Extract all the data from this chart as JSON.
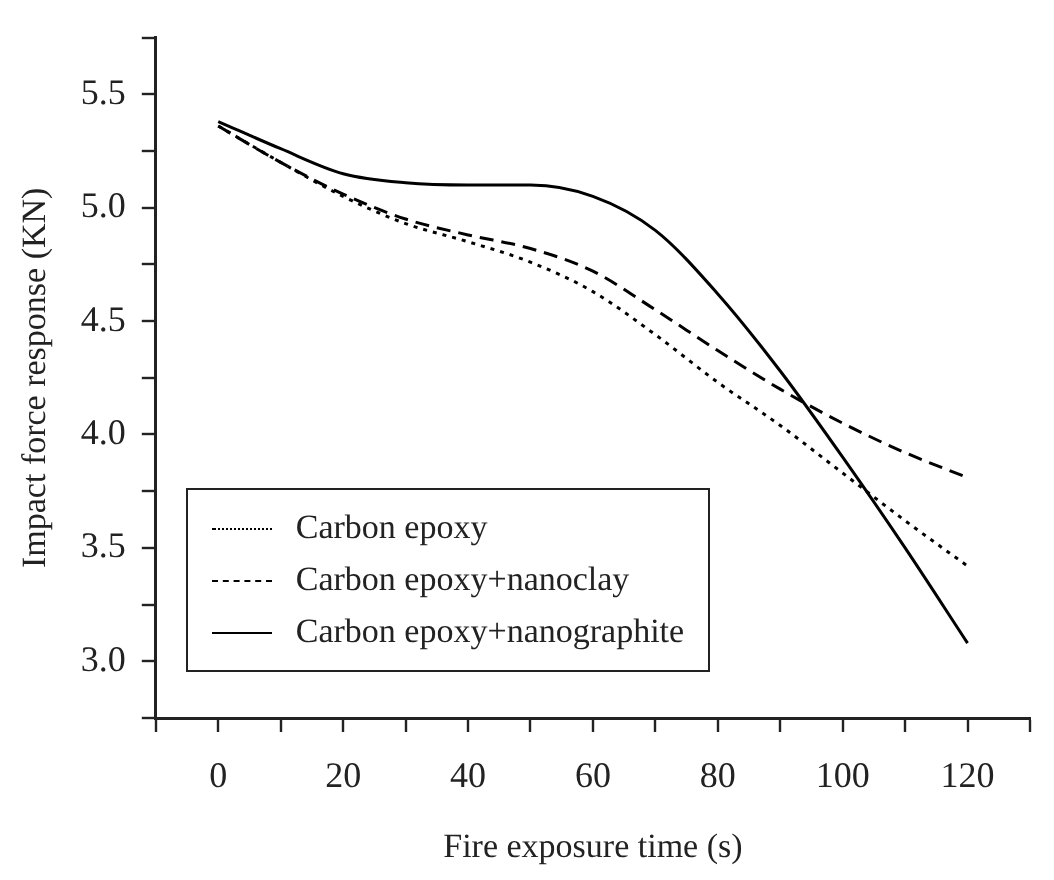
{
  "chart_data": {
    "type": "line",
    "xlabel": "Fire exposure time (s)",
    "ylabel": "Impact force response (KN)",
    "x": [
      0,
      10,
      20,
      30,
      40,
      50,
      60,
      70,
      80,
      90,
      100,
      110,
      120
    ],
    "series": [
      {
        "name": "Carbon epoxy",
        "color": "#000000",
        "line_style": "dotted",
        "values": [
          5.36,
          5.2,
          5.05,
          4.93,
          4.85,
          4.76,
          4.63,
          4.44,
          4.23,
          4.04,
          3.83,
          3.62,
          3.42
        ]
      },
      {
        "name": "Carbon epoxy+nanoclay",
        "color": "#000000",
        "line_style": "dashed",
        "values": [
          5.36,
          5.2,
          5.06,
          4.95,
          4.88,
          4.82,
          4.72,
          4.55,
          4.37,
          4.2,
          4.05,
          3.92,
          3.81
        ]
      },
      {
        "name": "Carbon epoxy+nanographite",
        "color": "#000000",
        "line_style": "solid",
        "values": [
          5.38,
          5.26,
          5.15,
          5.11,
          5.1,
          5.1,
          5.05,
          4.9,
          4.62,
          4.28,
          3.9,
          3.5,
          3.08
        ]
      }
    ],
    "xlim": [
      -10,
      130
    ],
    "xticks": [
      {
        "value": -10,
        "label": null
      },
      0,
      {
        "value": 10,
        "label": null
      },
      20,
      {
        "value": 30,
        "label": null
      },
      40,
      {
        "value": 50,
        "label": null
      },
      60,
      {
        "value": 70,
        "label": null
      },
      80,
      {
        "value": 90,
        "label": null
      },
      100,
      {
        "value": 110,
        "label": null
      },
      120,
      {
        "value": 130,
        "label": null
      }
    ],
    "ylim": [
      2.75,
      5.75
    ],
    "yticks": [
      {
        "value": 2.75,
        "label": null
      },
      {
        "value": 3.0,
        "label": "3.0"
      },
      {
        "value": 3.25,
        "label": null
      },
      {
        "value": 3.5,
        "label": "3.5"
      },
      {
        "value": 3.75,
        "label": null
      },
      {
        "value": 4.0,
        "label": "4.0"
      },
      {
        "value": 4.25,
        "label": null
      },
      {
        "value": 4.5,
        "label": "4.5"
      },
      {
        "value": 4.75,
        "label": null
      },
      {
        "value": 5.0,
        "label": "5.0"
      },
      {
        "value": 5.25,
        "label": null
      },
      {
        "value": 5.5,
        "label": "5.5"
      },
      {
        "value": 5.75,
        "label": null
      }
    ],
    "grid": false,
    "legend": "bottom left",
    "marker": "none"
  }
}
